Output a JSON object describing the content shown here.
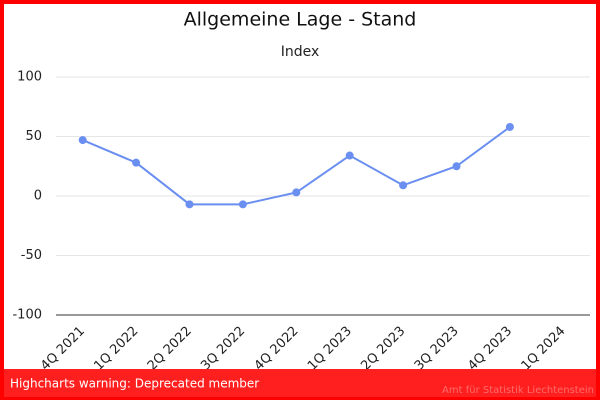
{
  "chart_data": {
    "type": "line",
    "title": "Allgemeine Lage - Stand",
    "subtitle": "Index",
    "categories": [
      "4Q 2021",
      "1Q 2022",
      "2Q 2022",
      "3Q 2022",
      "4Q 2022",
      "1Q 2023",
      "2Q 2023",
      "3Q 2023",
      "4Q 2023",
      "1Q 2024"
    ],
    "series": [
      {
        "color": "#6a8ff0",
        "values": [
          47,
          28,
          -7,
          -7,
          3,
          34,
          9,
          25,
          58,
          null
        ]
      }
    ],
    "ylim": [
      -100,
      100
    ],
    "yticks": [
      -100,
      -50,
      0,
      50,
      100
    ],
    "grid": true,
    "credits": "Amt für Statistik Liechtenstein"
  },
  "warning": "Highcharts warning: Deprecated member"
}
